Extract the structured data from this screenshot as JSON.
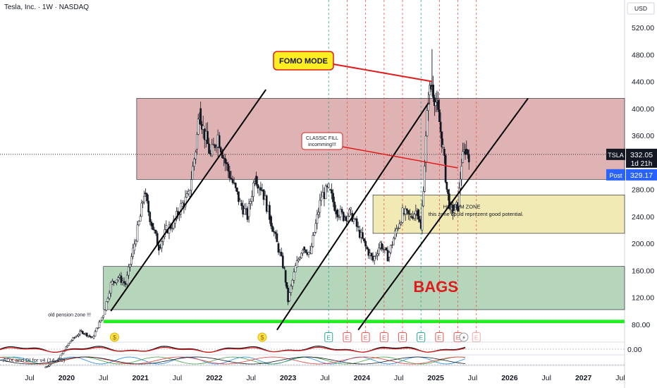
{
  "header": {
    "symbol_line": "Tesla, Inc. · 1W · NASDAQ",
    "currency": "USD"
  },
  "colors": {
    "up_candle": "#131722",
    "down_candle": "#131722",
    "red_zone": "#d9a6a6",
    "yellow_zone": "#eee6a8",
    "green_zone": "#a9cfb0",
    "bright_green": "#22ee22",
    "price_label_bg": "#131722",
    "post_label_bg": "#2962ff"
  },
  "chart_data": {
    "type": "candlestick",
    "price_axis": {
      "ticks": [
        "520.00",
        "480.00",
        "440.00",
        "400.00",
        "360.00",
        "280.00",
        "240.00",
        "200.00",
        "160.00",
        "120.00",
        "80.00"
      ],
      "tick_values": [
        520,
        480,
        440,
        400,
        360,
        280,
        240,
        200,
        160,
        120,
        80
      ],
      "range": [
        62,
        548
      ]
    },
    "time_axis": {
      "ticks": [
        "Jul",
        "2020",
        "Jul",
        "2021",
        "Jul",
        "2022",
        "Jul",
        "2023",
        "Jul",
        "2024",
        "Jul",
        "2025",
        "Jul",
        "2026",
        "Jul",
        "2027",
        "Jul"
      ],
      "tick_times": [
        2019.5,
        2020.0,
        2020.5,
        2021.0,
        2021.5,
        2022.0,
        2022.5,
        2023.0,
        2023.5,
        2024.0,
        2024.5,
        2025.0,
        2025.5,
        2026.0,
        2026.5,
        2027.0,
        2027.5
      ]
    },
    "last_price": {
      "symbol": "TSLA",
      "value": "332.05",
      "countdown": "1d 21h",
      "post_label": "Post",
      "post_value": "329.17"
    },
    "zones": [
      {
        "label": "",
        "color": "red_zone",
        "from": 2020.95,
        "to": 2029,
        "low": 295,
        "high": 415
      },
      {
        "label": "HOPIUM ZONE",
        "sublabel": "this zone could reprezent  good potential.",
        "color": "yellow_zone",
        "from": 2024.15,
        "to": 2029,
        "low": 215,
        "high": 272
      },
      {
        "label": "BAGS",
        "color": "green_zone",
        "from": 2020.5,
        "to": 2029,
        "low": 102,
        "high": 166
      },
      {
        "label": "old pension zone !!!",
        "color": "bright_green",
        "from": 2020.5,
        "to": 2029,
        "low": 82,
        "high": 87
      }
    ],
    "callouts": [
      {
        "text": "FOMO MODE",
        "target_time": 2024.95,
        "target_price": 440
      },
      {
        "text": "CLASSIC FILL\nincomming!!!",
        "target_time": 2025.3,
        "target_price": 312
      }
    ],
    "trend_lines": [
      {
        "t1": 2020.6,
        "p1": 100,
        "t2": 2022.7,
        "p2": 428
      },
      {
        "t1": 2022.85,
        "p1": 72,
        "t2": 2024.9,
        "p2": 408
      },
      {
        "t1": 2023.95,
        "p1": 72,
        "t2": 2026.25,
        "p2": 415
      }
    ],
    "event_markers": {
      "dividend_times": [
        2020.65,
        2022.65
      ],
      "earnings_times": [
        2023.55,
        2023.8,
        2024.05,
        2024.3,
        2024.55,
        2024.8,
        2025.05,
        2025.3
      ],
      "split_time": 2025.38,
      "future_earnings": 2025.55,
      "dividend_symbol": "$",
      "earnings_symbol": "E",
      "split_symbol": "⚡"
    },
    "event_lines": {
      "green_times": [
        2023.55,
        2024.8
      ],
      "red_times": [
        2023.8,
        2024.05,
        2024.3,
        2024.55,
        2025.05,
        2025.3,
        2025.55
      ]
    },
    "close_series": {
      "t": [
        2019.7,
        2019.9,
        2020.05,
        2020.2,
        2020.35,
        2020.5,
        2020.6,
        2020.7,
        2020.8,
        2020.9,
        2021.0,
        2021.05,
        2021.15,
        2021.25,
        2021.35,
        2021.45,
        2021.55,
        2021.65,
        2021.75,
        2021.8,
        2021.85,
        2021.95,
        2022.05,
        2022.15,
        2022.25,
        2022.35,
        2022.45,
        2022.55,
        2022.65,
        2022.75,
        2022.85,
        2022.95,
        2023.0,
        2023.1,
        2023.2,
        2023.3,
        2023.45,
        2023.55,
        2023.65,
        2023.75,
        2023.85,
        2023.95,
        2024.05,
        2024.15,
        2024.25,
        2024.35,
        2024.45,
        2024.55,
        2024.65,
        2024.75,
        2024.8,
        2024.85,
        2024.9,
        2024.95,
        2025.0,
        2025.05,
        2025.1,
        2025.15,
        2025.2,
        2025.25,
        2025.3,
        2025.35,
        2025.4,
        2025.45
      ],
      "close": [
        16,
        30,
        55,
        70,
        60,
        95,
        140,
        150,
        140,
        190,
        240,
        275,
        230,
        195,
        220,
        230,
        255,
        270,
        340,
        400,
        370,
        330,
        360,
        320,
        290,
        260,
        240,
        300,
        280,
        240,
        200,
        160,
        115,
        165,
        195,
        185,
        270,
        280,
        250,
        240,
        245,
        220,
        195,
        175,
        200,
        180,
        215,
        245,
        240,
        250,
        220,
        320,
        420,
        435,
        410,
        380,
        340,
        280,
        250,
        250,
        255,
        320,
        340,
        332
      ]
    },
    "indicator_1": {
      "label": "",
      "zero_tick": "0.00"
    },
    "indicator_2": {
      "label": "ADX and DI for v4 (14, 20)"
    }
  }
}
